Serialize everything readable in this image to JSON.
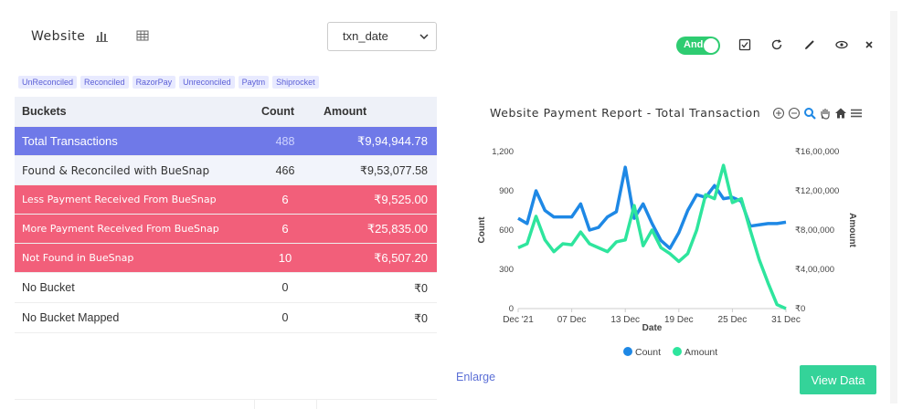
{
  "header": {
    "title": "Website",
    "select_value": "txn_date",
    "toggle_label": "And"
  },
  "tags": [
    "UnReconciled",
    "Reconciled",
    "RazorPay",
    "Unreconciled",
    "Paytm",
    "Shiprocket"
  ],
  "table": {
    "headers": [
      "Buckets",
      "Count",
      "Amount"
    ],
    "rows": [
      {
        "bucket": "Total Transactions",
        "count": "488",
        "amount": "₹9,94,944.78"
      },
      {
        "bucket": "Found & Reconciled with BueSnap",
        "count": "466",
        "amount": "₹9,53,077.58"
      },
      {
        "bucket": "Less Payment Received From BueSnap",
        "count": "6",
        "amount": "₹9,525.00"
      },
      {
        "bucket": "More Payment Received From BueSnap",
        "count": "6",
        "amount": "₹25,835.00"
      },
      {
        "bucket": "Not Found in BueSnap",
        "count": "10",
        "amount": "₹6,507.20"
      },
      {
        "bucket": "No Bucket",
        "count": "0",
        "amount": "₹0"
      },
      {
        "bucket": "No Bucket Mapped",
        "count": "0",
        "amount": "₹0"
      }
    ]
  },
  "actions": {
    "enlarge": "Enlarge",
    "view_data": "View Data"
  },
  "colors": {
    "count_series": "#1e88e5",
    "amount_series": "#2ee59d",
    "total_row": "#6f79e8",
    "red_row": "#f25f7a"
  },
  "chart_data": {
    "type": "line",
    "title": "Website Payment Report - Total Transaction",
    "xlabel": "Date",
    "ylabel": "Count",
    "y2label": "Amount",
    "x_ticks": [
      "Dec '21",
      "07 Dec",
      "13 Dec",
      "19 Dec",
      "25 Dec",
      "31 Dec"
    ],
    "y_ticks": [
      "0",
      "300",
      "600",
      "900",
      "1,200"
    ],
    "y2_ticks": [
      "₹0",
      "₹4,00,000",
      "₹8,00,000",
      "₹12,00,000",
      "₹16,00,000"
    ],
    "ylim": [
      0,
      1200
    ],
    "y2lim": [
      0,
      1600000
    ],
    "x_days": [
      1,
      2,
      3,
      4,
      5,
      6,
      7,
      8,
      9,
      10,
      11,
      12,
      13,
      14,
      15,
      16,
      17,
      18,
      19,
      20,
      21,
      22,
      23,
      24,
      25,
      26,
      27,
      28,
      29,
      30,
      31
    ],
    "series": [
      {
        "name": "Count",
        "axis": "left",
        "values": [
          690,
          650,
          900,
          750,
          700,
          700,
          700,
          800,
          600,
          620,
          700,
          740,
          1080,
          690,
          800,
          650,
          520,
          460,
          580,
          750,
          870,
          850,
          940,
          840,
          850,
          820,
          630,
          640,
          650,
          650,
          660
        ]
      },
      {
        "name": "Amount",
        "axis": "right",
        "values": [
          620000,
          660000,
          940000,
          700000,
          580000,
          660000,
          650000,
          780000,
          660000,
          620000,
          580000,
          680000,
          700000,
          1050000,
          640000,
          800000,
          620000,
          560000,
          480000,
          560000,
          800000,
          1160000,
          1120000,
          1460000,
          1080000,
          1120000,
          800000,
          500000,
          260000,
          40000,
          0
        ]
      }
    ],
    "legend_position": "bottom-center",
    "grid": false
  }
}
